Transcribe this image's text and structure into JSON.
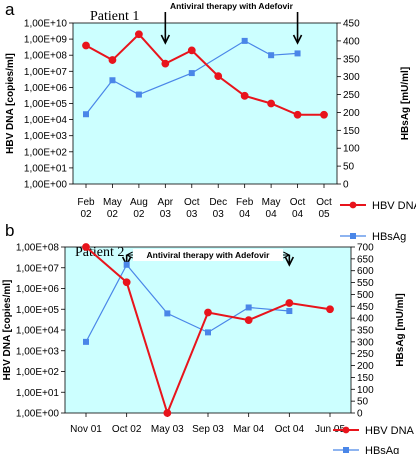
{
  "colors": {
    "plot_bg": "#ccffff",
    "hbv": "#e8141c",
    "hbsag": "#4a86e8"
  },
  "chart_data": [
    {
      "type": "line",
      "panel_label": "a",
      "annotation": "Patient 1",
      "therapy_label": "Antiviral therapy with Adefovir",
      "therapy_start": "Apr 03",
      "therapy_end": "Oct 04",
      "categories": [
        "Feb 02",
        "May 02",
        "Aug 02",
        "Apr 03",
        "Oct 03",
        "Dec 03",
        "Feb 04",
        "May 04",
        "Oct 04",
        "Oct 05"
      ],
      "category_lines": [
        [
          "Feb",
          "02"
        ],
        [
          "May",
          "02"
        ],
        [
          "Aug",
          "02"
        ],
        [
          "Apr",
          "03"
        ],
        [
          "Oct",
          "03"
        ],
        [
          "Dec",
          "03"
        ],
        [
          "Feb",
          "04"
        ],
        [
          "May",
          "04"
        ],
        [
          "Oct",
          "04"
        ],
        [
          "Oct",
          "05"
        ]
      ],
      "ylabel": "HBV DNA [copies/ml]",
      "ylabel_right": "HBsAg [mU/ml]",
      "y_scale": "log",
      "ylim": [
        1,
        10000000000
      ],
      "y_ticks": [
        "1,00E+00",
        "1,00E+01",
        "1,00E+02",
        "1,00E+03",
        "1,00E+04",
        "1,00E+05",
        "1,00E+06",
        "1,00E+07",
        "1,00E+08",
        "1,00E+09",
        "1,00E+10"
      ],
      "ylim_right": [
        0,
        450
      ],
      "y_ticks_right": [
        "0",
        "50",
        "100",
        "150",
        "200",
        "250",
        "300",
        "350",
        "400",
        "450"
      ],
      "series": [
        {
          "name": "HBV DNA",
          "axis": "left",
          "marker": "circle",
          "values": [
            400000000,
            50000000,
            2000000000,
            30000000,
            200000000,
            5000000,
            300000,
            100000,
            20000,
            20000
          ]
        },
        {
          "name": "HBsAg",
          "axis": "right",
          "marker": "square",
          "values": [
            195,
            290,
            250,
            null,
            310,
            null,
            400,
            360,
            365,
            null
          ]
        }
      ]
    },
    {
      "type": "line",
      "panel_label": "b",
      "annotation": "Patient 2",
      "therapy_label": "Antiviral therapy with Adefovir",
      "therapy_start": "Oct 02",
      "therapy_end": "Oct 04",
      "categories": [
        "Nov 01",
        "Oct 02",
        "May 03",
        "Sep 03",
        "Mar 04",
        "Oct 04",
        "Jun 05"
      ],
      "category_lines": [
        [
          "Nov 01"
        ],
        [
          "Oct 02"
        ],
        [
          "May 03"
        ],
        [
          "Sep 03"
        ],
        [
          "Mar 04"
        ],
        [
          "Oct 04"
        ],
        [
          "Jun 05"
        ]
      ],
      "ylabel": "HBV DNA [copies/ml]",
      "ylabel_right": "HBsAg [mU/ml]",
      "y_scale": "log",
      "ylim": [
        1,
        100000000
      ],
      "y_ticks": [
        "1,00E+00",
        "1,00E+01",
        "1,00E+02",
        "1,00E+03",
        "1,00E+04",
        "1,00E+05",
        "1,00E+06",
        "1,00E+07",
        "1,00E+08"
      ],
      "ylim_right": [
        0,
        700
      ],
      "y_ticks_right": [
        "0",
        "50",
        "100",
        "150",
        "200",
        "250",
        "300",
        "350",
        "400",
        "450",
        "500",
        "550",
        "600",
        "650",
        "700"
      ],
      "series": [
        {
          "name": "HBV DNA",
          "axis": "left",
          "marker": "circle",
          "values": [
            100000000,
            2000000,
            1,
            70000,
            30000,
            200000,
            100000
          ]
        },
        {
          "name": "HBsAg",
          "axis": "right",
          "marker": "square",
          "values": [
            300,
            625,
            420,
            340,
            445,
            430,
            null
          ]
        }
      ]
    }
  ]
}
